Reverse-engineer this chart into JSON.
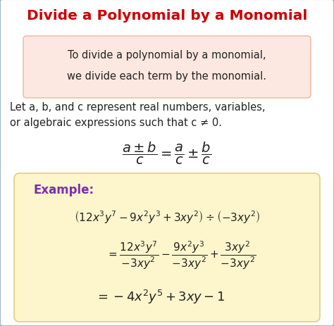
{
  "title": "Divide a Polynomial by a Monomial",
  "title_color": "#cc0000",
  "title_fontsize": 14.5,
  "bg_color": "#ffffff",
  "border_color": "#a0b8cc",
  "box1_text_line1": "To divide a polynomial by a monomial,",
  "box1_text_line2": "we divide each term by the monomial.",
  "box1_bg": "#fce8e0",
  "box1_border": "#e8b8a0",
  "desc_line1": "Let a, b, and c represent real numbers, variables,",
  "desc_line2": "or algebraic expressions such that c ≠ 0.",
  "example_label": "Example:",
  "example_label_color": "#7b2fa8",
  "example_bg": "#fdf5cc",
  "example_border": "#e0d080",
  "text_color": "#222222",
  "text_fontsize": 10.5
}
